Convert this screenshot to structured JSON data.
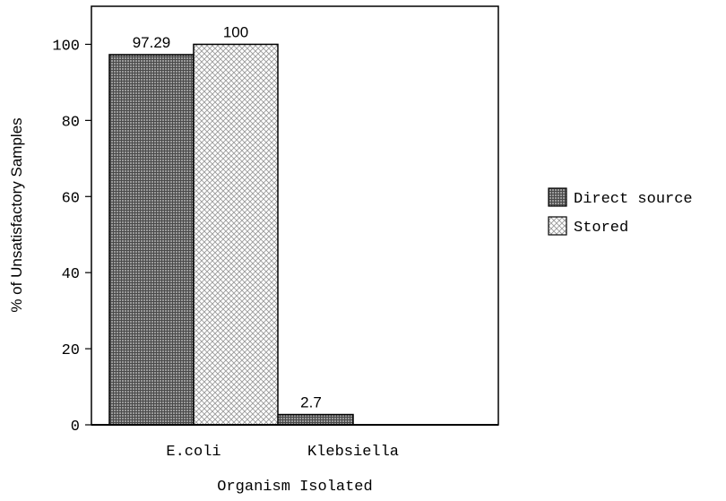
{
  "chart_data": {
    "type": "bar",
    "categories": [
      "E.coli",
      "Klebsiella"
    ],
    "series": [
      {
        "name": "Direct source",
        "values": [
          97.29,
          2.7
        ],
        "labels": [
          "97.29",
          "2.7"
        ],
        "pattern": "dense-grid",
        "color": "#6e6e6e"
      },
      {
        "name": "Stored",
        "values": [
          100,
          0
        ],
        "labels": [
          "100",
          ""
        ],
        "pattern": "crosshatch",
        "color": "#c8c8c8"
      }
    ],
    "xlabel": "Organism Isolated",
    "ylabel": "% of Unsatisfactory Samples",
    "ylim": [
      0,
      110
    ],
    "yticks": [
      0,
      20,
      40,
      60,
      80,
      100
    ],
    "grid": false,
    "legend_position": "right"
  }
}
